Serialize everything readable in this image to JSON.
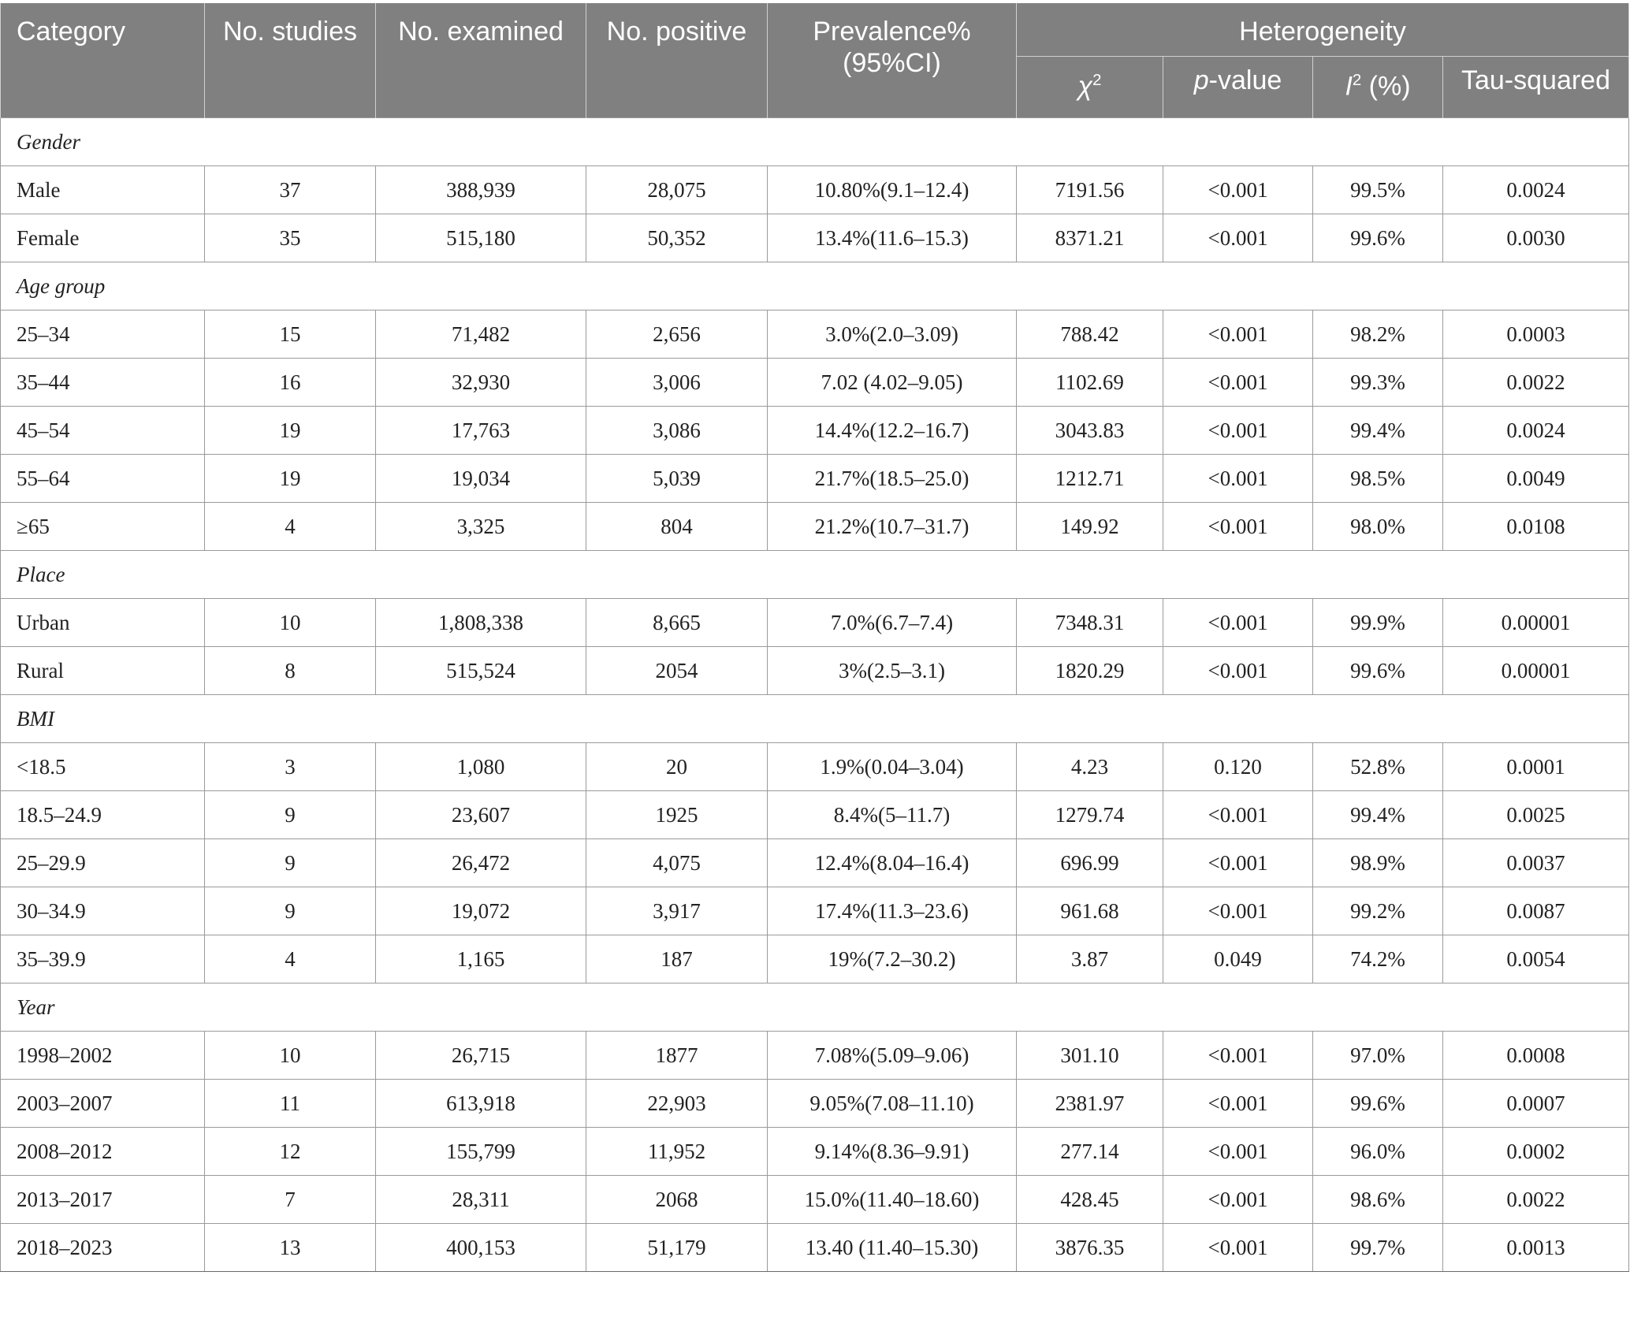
{
  "header": {
    "category": "Category",
    "no_studies": "No. studies",
    "no_examined": "No. examined",
    "no_positive": "No. positive",
    "prevalence": "Prevalence% (95%CI)",
    "heterogeneity": "Heterogeneity",
    "chi2_symbol": "χ",
    "chi2_sup": "2",
    "pvalue_p": "p",
    "pvalue_rest": "-value",
    "i2_symbol": "I",
    "i2_sup": "2",
    "i2_rest": " (%)",
    "tau": "Tau-squared"
  },
  "sections": [
    {
      "title": "Gender",
      "rows": [
        [
          "Male",
          "37",
          "388,939",
          "28,075",
          "10.80%(9.1–12.4)",
          "7191.56",
          "<0.001",
          "99.5%",
          "0.0024"
        ],
        [
          "Female",
          "35",
          "515,180",
          "50,352",
          "13.4%(11.6–15.3)",
          "8371.21",
          "<0.001",
          "99.6%",
          "0.0030"
        ]
      ]
    },
    {
      "title": "Age group",
      "rows": [
        [
          "25–34",
          "15",
          "71,482",
          "2,656",
          "3.0%(2.0–3.09)",
          "788.42",
          "<0.001",
          "98.2%",
          "0.0003"
        ],
        [
          "35–44",
          "16",
          "32,930",
          "3,006",
          "7.02 (4.02–9.05)",
          "1102.69",
          "<0.001",
          "99.3%",
          "0.0022"
        ],
        [
          "45–54",
          "19",
          "17,763",
          "3,086",
          "14.4%(12.2–16.7)",
          "3043.83",
          "<0.001",
          "99.4%",
          "0.0024"
        ],
        [
          "55–64",
          "19",
          "19,034",
          "5,039",
          "21.7%(18.5–25.0)",
          "1212.71",
          "<0.001",
          "98.5%",
          "0.0049"
        ],
        [
          "≥65",
          "4",
          "3,325",
          "804",
          "21.2%(10.7–31.7)",
          "149.92",
          "<0.001",
          "98.0%",
          "0.0108"
        ]
      ]
    },
    {
      "title": "Place",
      "rows": [
        [
          "Urban",
          "10",
          "1,808,338",
          "8,665",
          "7.0%(6.7–7.4)",
          "7348.31",
          "<0.001",
          "99.9%",
          "0.00001"
        ],
        [
          "Rural",
          "8",
          "515,524",
          "2054",
          "3%(2.5–3.1)",
          "1820.29",
          "<0.001",
          "99.6%",
          "0.00001"
        ]
      ]
    },
    {
      "title": "BMI",
      "rows": [
        [
          "<18.5",
          "3",
          "1,080",
          "20",
          "1.9%(0.04–3.04)",
          "4.23",
          "0.120",
          "52.8%",
          "0.0001"
        ],
        [
          "18.5–24.9",
          "9",
          "23,607",
          "1925",
          "8.4%(5–11.7)",
          "1279.74",
          "<0.001",
          "99.4%",
          "0.0025"
        ],
        [
          "25–29.9",
          "9",
          "26,472",
          "4,075",
          "12.4%(8.04–16.4)",
          "696.99",
          "<0.001",
          "98.9%",
          "0.0037"
        ],
        [
          "30–34.9",
          "9",
          "19,072",
          "3,917",
          "17.4%(11.3–23.6)",
          "961.68",
          "<0.001",
          "99.2%",
          "0.0087"
        ],
        [
          "35–39.9",
          "4",
          "1,165",
          "187",
          "19%(7.2–30.2)",
          "3.87",
          "0.049",
          "74.2%",
          "0.0054"
        ]
      ]
    },
    {
      "title": "Year",
      "rows": [
        [
          "1998–2002",
          "10",
          "26,715",
          "1877",
          "7.08%(5.09–9.06)",
          "301.10",
          "<0.001",
          "97.0%",
          "0.0008"
        ],
        [
          "2003–2007",
          "11",
          "613,918",
          "22,903",
          "9.05%(7.08–11.10)",
          "2381.97",
          "<0.001",
          "99.6%",
          "0.0007"
        ],
        [
          "2008–2012",
          "12",
          "155,799",
          "11,952",
          "9.14%(8.36–9.91)",
          "277.14",
          "<0.001",
          "96.0%",
          "0.0002"
        ],
        [
          "2013–2017",
          "7",
          "28,311",
          "2068",
          "15.0%(11.40–18.60)",
          "428.45",
          "<0.001",
          "98.6%",
          "0.0022"
        ],
        [
          "2018–2023",
          "13",
          "400,153",
          "51,179",
          "13.40 (11.40–15.30)",
          "3876.35",
          "<0.001",
          "99.7%",
          "0.0013"
        ]
      ]
    }
  ]
}
